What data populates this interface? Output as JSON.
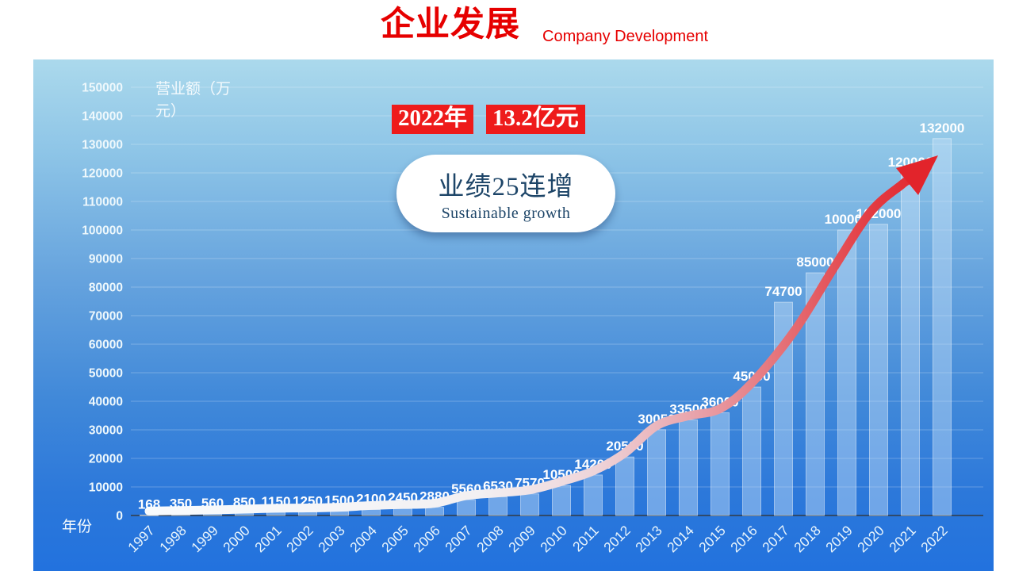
{
  "header": {
    "title_cn": "企业发展",
    "title_en": "Company Development"
  },
  "badges": {
    "year": "2022年",
    "amount": "13.2亿元"
  },
  "bubble": {
    "line1": "业绩25连增",
    "line2": "Sustainable growth"
  },
  "colors": {
    "title_red": "#e60000",
    "badge_red": "#ee1b1b",
    "arrow_red": "#e2242b",
    "bar_fill": "rgba(198,224,248,0.45)",
    "bar_edge": "rgba(255,255,255,0.45)",
    "label_white": "#ffffff",
    "tick_white": "#eef8fc",
    "grid_line": "rgba(255,255,255,0.25)",
    "axis_line": "#333c46",
    "bubble_text": "#1d4568",
    "panel_top": "#abd9ec",
    "panel_bottom": "#2272de"
  },
  "chart_data": {
    "type": "bar",
    "title": "",
    "xlabel": "年份",
    "ylabel": "营业额（万元）",
    "categories": [
      "1997",
      "1998",
      "1999",
      "2000",
      "2001",
      "2002",
      "2003",
      "2004",
      "2005",
      "2006",
      "2007",
      "2008",
      "2009",
      "2010",
      "2011",
      "2012",
      "2013",
      "2014",
      "2015",
      "2016",
      "2017",
      "2018",
      "2019",
      "2020",
      "2021",
      "2022"
    ],
    "values": [
      168,
      350,
      560,
      850,
      1150,
      1250,
      1500,
      2100,
      2450,
      2880,
      5560,
      6530,
      7570,
      10500,
      14200,
      20500,
      30050,
      33500,
      36000,
      45000,
      74700,
      85000,
      100000,
      102000,
      120000,
      132000
    ],
    "ylim": [
      0,
      150000
    ],
    "ytick_step": 10000,
    "grid": true,
    "data_labels": true,
    "legend": "none",
    "trend_arrow": "white-to-red growth arrow following bar tops"
  }
}
